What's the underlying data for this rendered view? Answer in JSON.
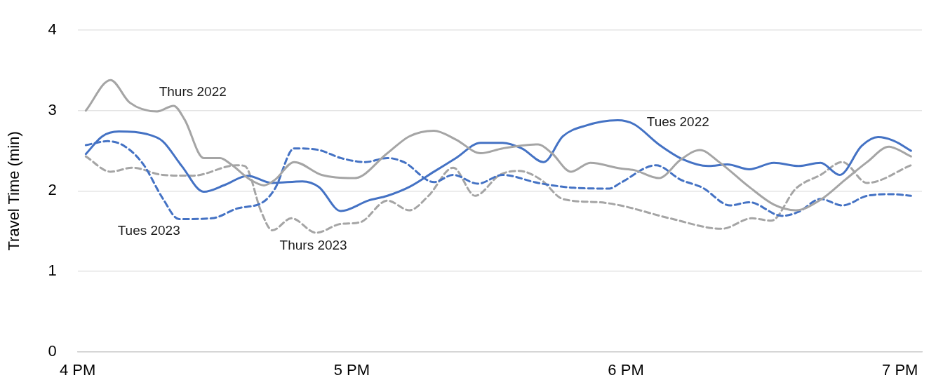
{
  "chart_data": {
    "type": "line",
    "ylabel": "Travel Time (min)",
    "xlim": [
      4,
      7.08
    ],
    "xticks": [
      {
        "value": 4,
        "label": "4 PM"
      },
      {
        "value": 5,
        "label": "5 PM"
      },
      {
        "value": 6,
        "label": "6 PM"
      },
      {
        "value": 7,
        "label": "7 PM"
      }
    ],
    "ylim": [
      0,
      4
    ],
    "yticks": [
      0,
      1,
      2,
      3,
      4
    ],
    "grid": "y",
    "legend": false,
    "marker": "none",
    "series": [
      {
        "name": "Thurs 2022",
        "color": "#a5a5a5",
        "line_style": "solid",
        "x": [
          4.03,
          4.12,
          4.19,
          4.29,
          4.35,
          4.39,
          4.46,
          4.52,
          4.56,
          4.63,
          4.68,
          4.72,
          4.79,
          4.89,
          5.01,
          5.13,
          5.21,
          5.3,
          5.38,
          5.47,
          5.55,
          5.68,
          5.73,
          5.8,
          5.87,
          5.98,
          6.03,
          6.12,
          6.2,
          6.27,
          6.34,
          6.45,
          6.54,
          6.62,
          6.71,
          6.8,
          6.88,
          6.96,
          7.04
        ],
        "values": [
          3.0,
          3.38,
          3.1,
          2.99,
          3.06,
          2.89,
          2.41,
          2.41,
          2.33,
          2.14,
          2.07,
          2.14,
          2.36,
          2.2,
          2.16,
          2.47,
          2.68,
          2.75,
          2.64,
          2.47,
          2.53,
          2.58,
          2.47,
          2.24,
          2.35,
          2.28,
          2.26,
          2.16,
          2.39,
          2.51,
          2.36,
          2.05,
          1.83,
          1.76,
          1.89,
          2.14,
          2.36,
          2.55,
          2.43
        ]
      },
      {
        "name": "Tues 2022",
        "color": "#4472c4",
        "line_style": "solid",
        "x": [
          4.03,
          4.09,
          4.15,
          4.25,
          4.31,
          4.38,
          4.46,
          4.54,
          4.62,
          4.71,
          4.82,
          4.88,
          4.96,
          5.06,
          5.13,
          5.21,
          5.3,
          5.38,
          5.47,
          5.55,
          5.62,
          5.7,
          5.77,
          5.85,
          5.97,
          6.03,
          6.12,
          6.21,
          6.3,
          6.37,
          6.45,
          6.54,
          6.63,
          6.71,
          6.78,
          6.86,
          6.92,
          6.98,
          7.04
        ],
        "values": [
          2.46,
          2.68,
          2.74,
          2.71,
          2.62,
          2.31,
          1.99,
          2.08,
          2.19,
          2.1,
          2.12,
          2.05,
          1.75,
          1.88,
          1.94,
          2.05,
          2.24,
          2.41,
          2.6,
          2.6,
          2.53,
          2.36,
          2.68,
          2.81,
          2.88,
          2.83,
          2.58,
          2.39,
          2.31,
          2.33,
          2.27,
          2.35,
          2.31,
          2.35,
          2.2,
          2.56,
          2.67,
          2.62,
          2.5
        ]
      },
      {
        "name": "Tues 2023",
        "color": "#4472c4",
        "line_style": "dashed",
        "x": [
          4.03,
          4.11,
          4.17,
          4.24,
          4.31,
          4.37,
          4.49,
          4.58,
          4.68,
          4.72,
          4.79,
          4.88,
          4.96,
          5.05,
          5.13,
          5.19,
          5.3,
          5.37,
          5.46,
          5.55,
          5.68,
          5.81,
          5.94,
          5.98,
          6.11,
          6.2,
          6.28,
          6.38,
          6.45,
          6.57,
          6.63,
          6.71,
          6.79,
          6.88,
          6.97,
          7.04
        ],
        "values": [
          2.57,
          2.62,
          2.56,
          2.33,
          1.91,
          1.65,
          1.66,
          1.78,
          1.87,
          2.03,
          2.53,
          2.51,
          2.41,
          2.36,
          2.41,
          2.36,
          2.11,
          2.2,
          2.09,
          2.2,
          2.1,
          2.04,
          2.03,
          2.1,
          2.32,
          2.14,
          2.04,
          1.82,
          1.86,
          1.69,
          1.74,
          1.9,
          1.82,
          1.94,
          1.96,
          1.94
        ]
      },
      {
        "name": "Thurs 2023",
        "color": "#a5a5a5",
        "line_style": "dashed",
        "x": [
          4.03,
          4.12,
          4.2,
          4.31,
          4.42,
          4.58,
          4.61,
          4.67,
          4.71,
          4.78,
          4.87,
          4.96,
          5.03,
          5.13,
          5.21,
          5.28,
          5.37,
          5.45,
          5.54,
          5.61,
          5.69,
          5.77,
          5.9,
          5.98,
          6.16,
          6.35,
          6.46,
          6.53,
          6.62,
          6.71,
          6.79,
          6.88,
          7.04
        ],
        "values": [
          2.43,
          2.24,
          2.29,
          2.2,
          2.19,
          2.32,
          2.31,
          1.74,
          1.51,
          1.66,
          1.48,
          1.59,
          1.61,
          1.88,
          1.76,
          1.94,
          2.29,
          1.94,
          2.2,
          2.25,
          2.14,
          1.9,
          1.86,
          1.82,
          1.66,
          1.53,
          1.66,
          1.63,
          2.03,
          2.2,
          2.36,
          2.1,
          2.32
        ]
      }
    ]
  }
}
